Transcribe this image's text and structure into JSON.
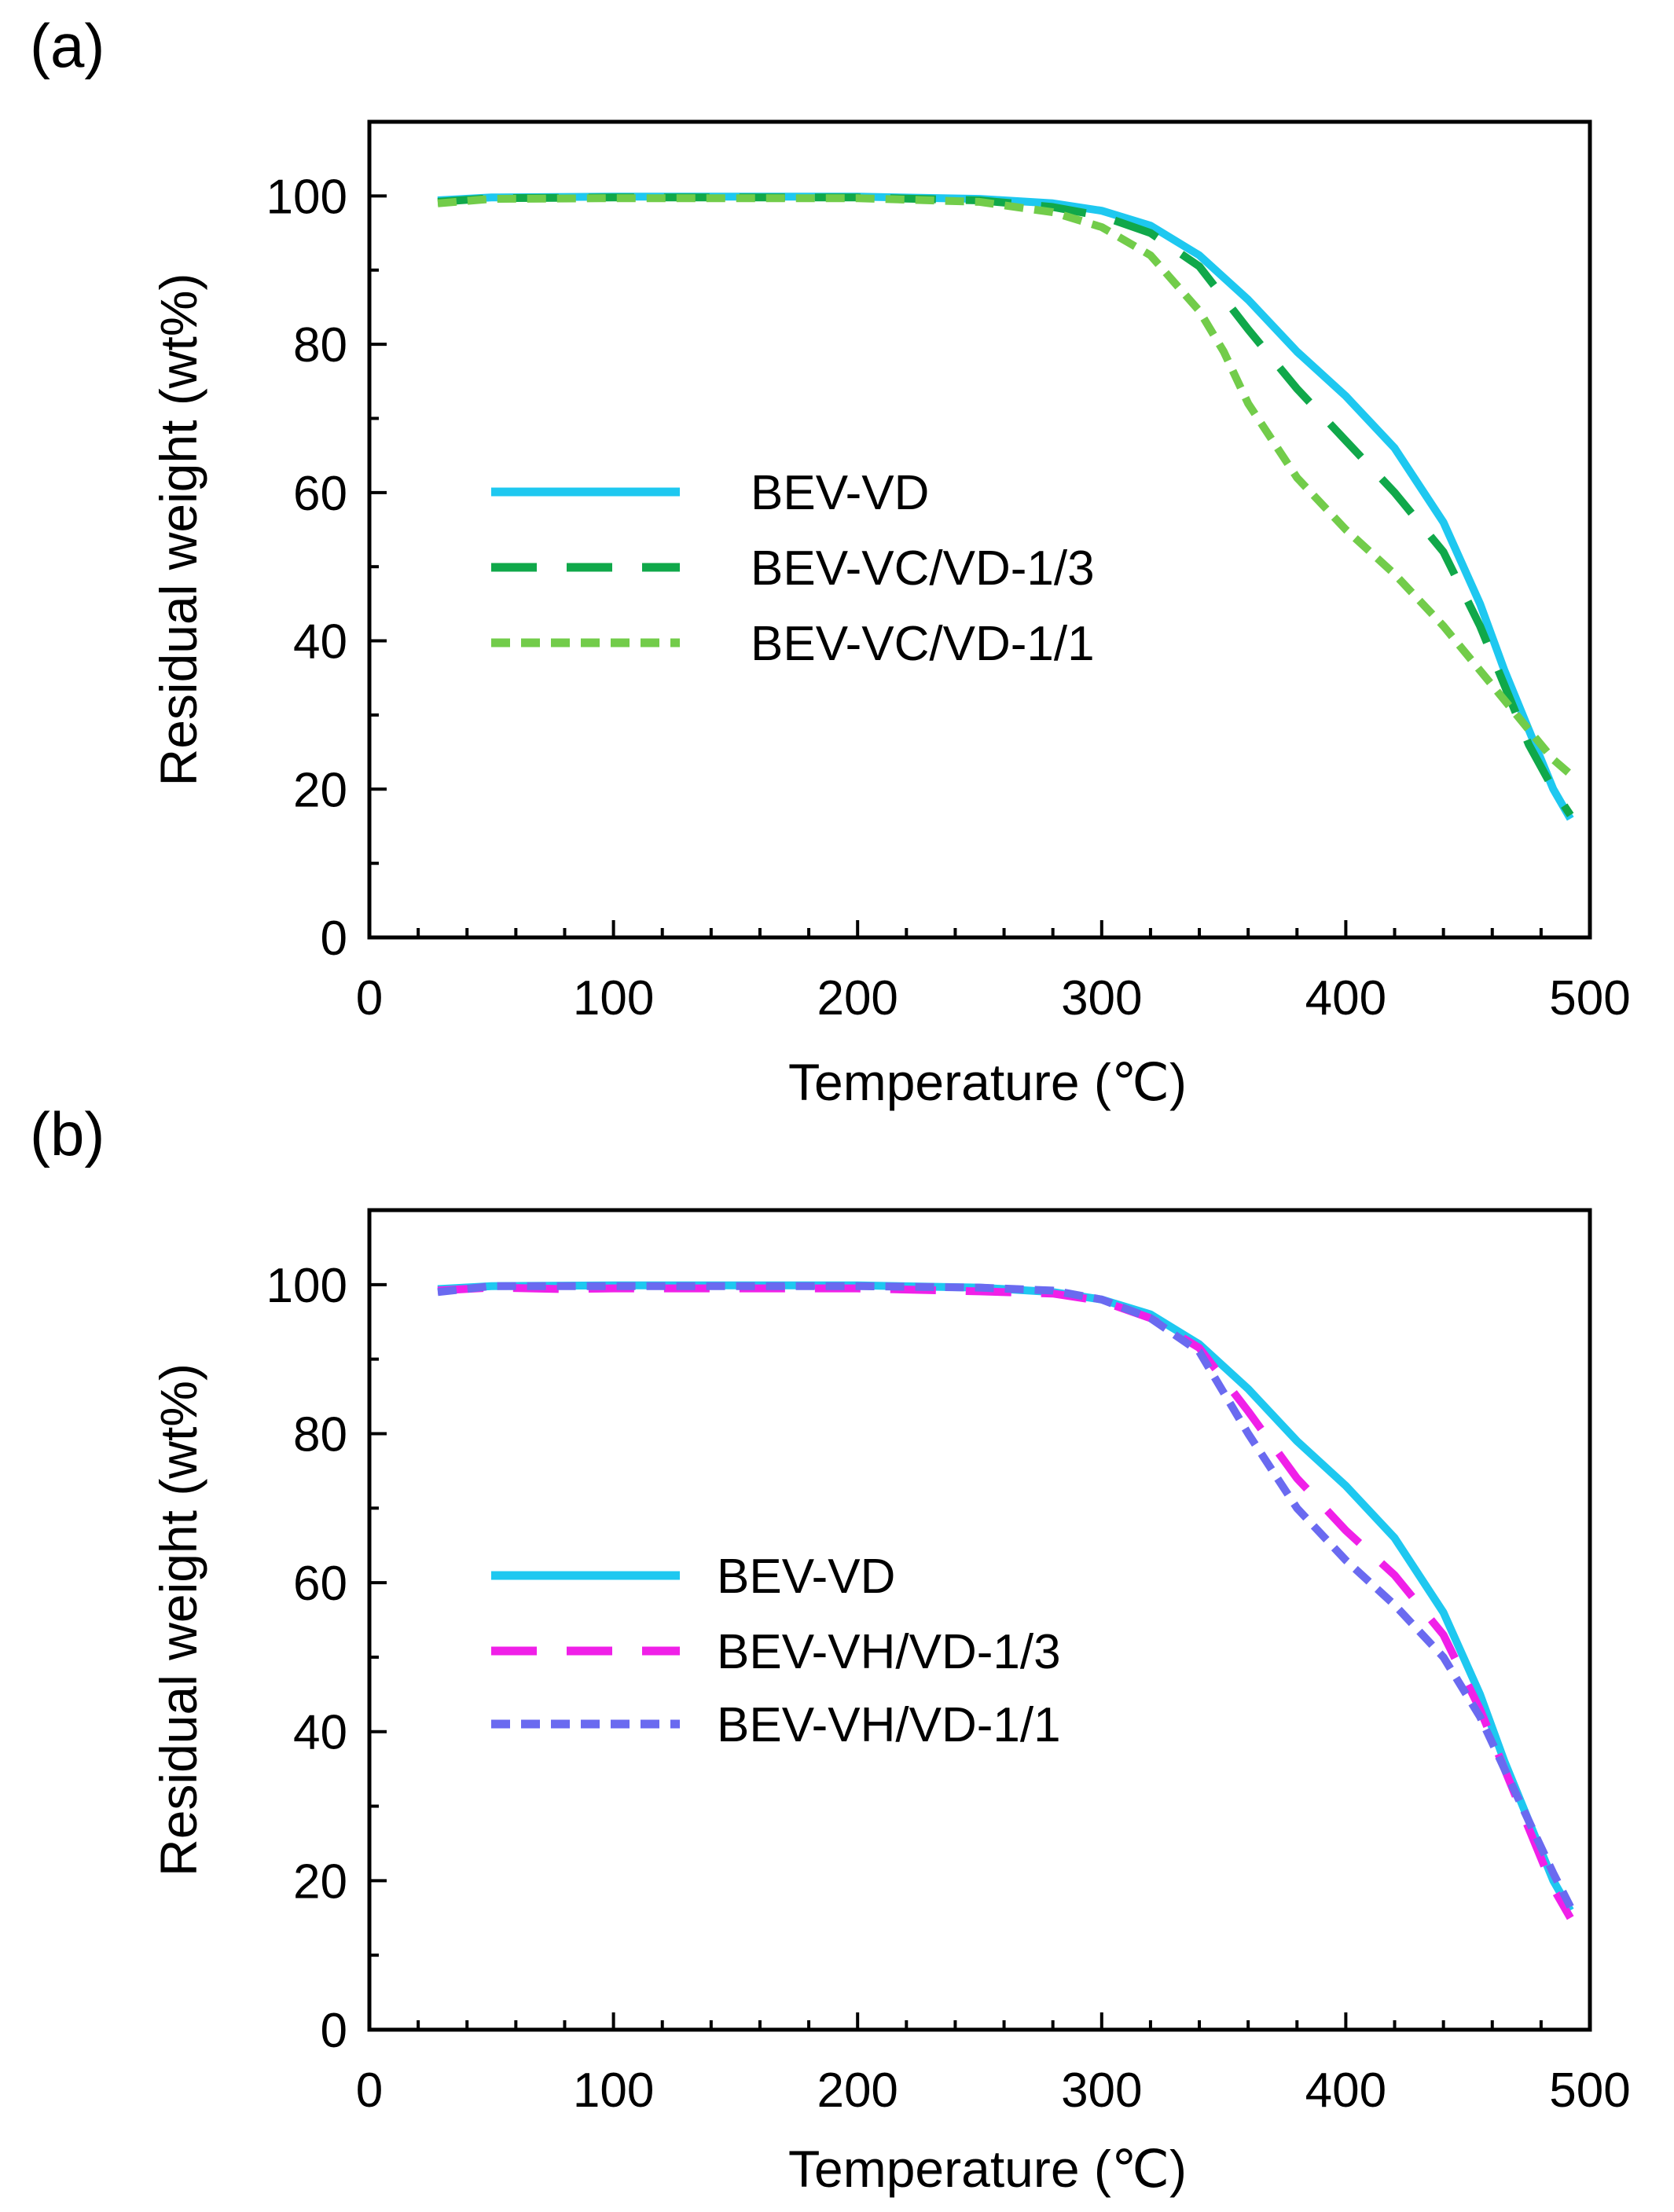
{
  "chart_data": [
    {
      "type": "line",
      "panel_label": "(a)",
      "xlabel": "Temperature (℃)",
      "ylabel": "Residual weight (wt%)",
      "xlim": [
        0,
        500
      ],
      "ylim": [
        0,
        110
      ],
      "xticks": [
        "0",
        "100",
        "200",
        "300",
        "400",
        "500"
      ],
      "yticks": [
        "0",
        "20",
        "40",
        "60",
        "80",
        "100"
      ],
      "grid": false,
      "legend_position": "center-left",
      "series": [
        {
          "name": "BEV-VD",
          "color": "#1EC8F0",
          "dash": "solid",
          "x": [
            28,
            50,
            100,
            150,
            200,
            250,
            280,
            300,
            320,
            340,
            360,
            380,
            400,
            420,
            440,
            455,
            465,
            475,
            485,
            492
          ],
          "y": [
            99.4,
            99.8,
            99.9,
            99.9,
            99.9,
            99.6,
            99.0,
            98.0,
            96.0,
            92.0,
            86.0,
            79.0,
            73.0,
            66.0,
            56.0,
            45.0,
            36.0,
            28.0,
            20.0,
            16.0
          ]
        },
        {
          "name": "BEV-VC/VD-1/3",
          "color": "#10A84A",
          "dash": "long",
          "x": [
            28,
            50,
            100,
            150,
            200,
            250,
            280,
            300,
            320,
            340,
            360,
            380,
            400,
            420,
            440,
            455,
            465,
            475,
            485,
            492
          ],
          "y": [
            99.2,
            99.7,
            99.8,
            99.8,
            99.8,
            99.4,
            98.5,
            97.3,
            95.0,
            90.5,
            82.0,
            74.0,
            67.0,
            60.0,
            52.0,
            42.0,
            34.0,
            26.0,
            20.0,
            16.5
          ]
        },
        {
          "name": "BEV-VC/VD-1/1",
          "color": "#72CC4A",
          "dash": "short",
          "x": [
            28,
            50,
            100,
            150,
            200,
            250,
            280,
            300,
            320,
            340,
            350,
            360,
            380,
            400,
            420,
            440,
            460,
            475,
            485,
            492
          ],
          "y": [
            99.0,
            99.6,
            99.7,
            99.7,
            99.7,
            99.2,
            97.8,
            95.8,
            92.0,
            84.5,
            79.0,
            72.0,
            62.0,
            55.0,
            49.0,
            42.0,
            34.0,
            28.0,
            24.0,
            22.0
          ]
        }
      ]
    },
    {
      "type": "line",
      "panel_label": "(b)",
      "xlabel": "Temperature (℃)",
      "ylabel": "Residual weight (wt%)",
      "xlim": [
        0,
        500
      ],
      "ylim": [
        0,
        110
      ],
      "xticks": [
        "0",
        "100",
        "200",
        "300",
        "400",
        "500"
      ],
      "yticks": [
        "0",
        "20",
        "40",
        "60",
        "80",
        "100"
      ],
      "grid": false,
      "legend_position": "center-left",
      "series": [
        {
          "name": "BEV-VD",
          "color": "#1EC8F0",
          "dash": "solid",
          "x": [
            28,
            50,
            100,
            150,
            200,
            250,
            280,
            300,
            320,
            340,
            360,
            380,
            400,
            420,
            440,
            455,
            465,
            475,
            485,
            492
          ],
          "y": [
            99.4,
            99.8,
            99.9,
            99.9,
            99.9,
            99.6,
            99.0,
            98.0,
            96.0,
            92.0,
            86.0,
            79.0,
            73.0,
            66.0,
            56.0,
            45.0,
            36.0,
            28.0,
            20.0,
            16.0
          ]
        },
        {
          "name": "BEV-VH/VD-1/3",
          "color": "#F020E8",
          "dash": "long",
          "x": [
            28,
            50,
            80,
            100,
            150,
            200,
            250,
            280,
            300,
            320,
            340,
            360,
            380,
            400,
            420,
            440,
            455,
            465,
            475,
            485,
            492
          ],
          "y": [
            99.2,
            99.6,
            99.4,
            99.5,
            99.5,
            99.5,
            99.1,
            98.8,
            97.8,
            95.5,
            91.5,
            83.0,
            74.0,
            67.0,
            61.0,
            53.0,
            43.0,
            35.0,
            27.0,
            19.0,
            15.0
          ]
        },
        {
          "name": "BEV-VH/VD-1/1",
          "color": "#6A6AF0",
          "dash": "short",
          "x": [
            28,
            50,
            100,
            150,
            200,
            250,
            280,
            300,
            320,
            340,
            360,
            380,
            400,
            420,
            440,
            455,
            465,
            475,
            485,
            492
          ],
          "y": [
            99.0,
            99.8,
            99.8,
            99.8,
            99.8,
            99.6,
            99.2,
            98.0,
            95.5,
            91.0,
            80.0,
            70.0,
            63.0,
            57.0,
            50.0,
            42.0,
            35.0,
            28.0,
            21.0,
            16.5
          ]
        }
      ]
    }
  ]
}
